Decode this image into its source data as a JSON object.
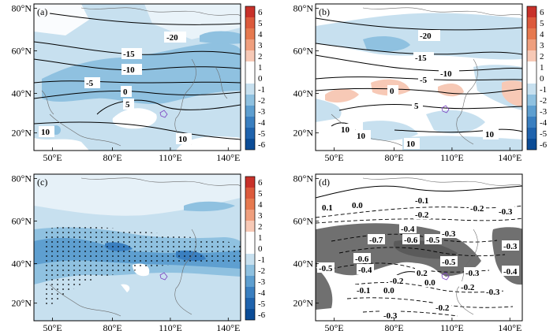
{
  "colorbar": {
    "levels": [
      "6",
      "5",
      "4",
      "3",
      "2",
      "1",
      "0",
      "-1",
      "-2",
      "-3",
      "-4",
      "-5",
      "-6"
    ],
    "colors": [
      "#c8312a",
      "#dc5a3c",
      "#e6794f",
      "#ef9f7e",
      "#f7c9b6",
      "#ffffff",
      "#ffffff",
      "#c7e0ef",
      "#8fc1e0",
      "#5e9fd0",
      "#3a7fc0",
      "#1f63ad",
      "#0b4c96"
    ]
  },
  "axes": {
    "lat_labels": [
      "80°N",
      "60°N",
      "40°N",
      "20°N"
    ],
    "lon_labels": [
      "50°E",
      "80°E",
      "110°E",
      "140°E"
    ]
  },
  "panels": [
    {
      "id": "a",
      "label": "(a)",
      "contour_labels": [
        "-20",
        "-15",
        "-10",
        "-5",
        "0",
        "5",
        "10",
        "10"
      ]
    },
    {
      "id": "b",
      "label": "(b)",
      "contour_labels": [
        "-20",
        "-15",
        "-10",
        "-5",
        "0",
        "5",
        "10",
        "10",
        "10",
        "10"
      ]
    },
    {
      "id": "c",
      "label": "(c)",
      "contour_labels": []
    },
    {
      "id": "d",
      "label": "(d)",
      "contour_labels": [
        "0.1",
        "0.0",
        "-0.1",
        "-0.2",
        "-0.2",
        "-0.3",
        "-0.4",
        "-0.7",
        "-0.6",
        "-0.5",
        "-0.3",
        "-0.6",
        "-0.4",
        "-0.5",
        "-0.5",
        "-0.3",
        "-0.4",
        "0.2",
        "0.0",
        "-0.2",
        "-0.1",
        "0.0",
        "-0.2",
        "-0.3",
        "-0.2",
        "-0.3",
        "-0.3"
      ]
    }
  ]
}
